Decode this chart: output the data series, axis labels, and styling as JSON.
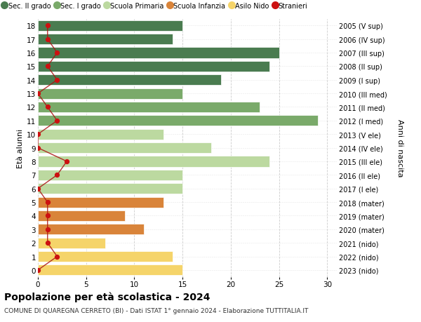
{
  "ages": [
    18,
    17,
    16,
    15,
    14,
    13,
    12,
    11,
    10,
    9,
    8,
    7,
    6,
    5,
    4,
    3,
    2,
    1,
    0
  ],
  "right_labels": [
    "2005 (V sup)",
    "2006 (IV sup)",
    "2007 (III sup)",
    "2008 (II sup)",
    "2009 (I sup)",
    "2010 (III med)",
    "2011 (II med)",
    "2012 (I med)",
    "2013 (V ele)",
    "2014 (IV ele)",
    "2015 (III ele)",
    "2016 (II ele)",
    "2017 (I ele)",
    "2018 (mater)",
    "2019 (mater)",
    "2020 (mater)",
    "2021 (nido)",
    "2022 (nido)",
    "2023 (nido)"
  ],
  "bar_values": [
    15,
    14,
    25,
    24,
    19,
    15,
    23,
    29,
    13,
    18,
    24,
    15,
    15,
    13,
    9,
    11,
    7,
    14,
    15
  ],
  "bar_colors": [
    "#4a7c50",
    "#4a7c50",
    "#4a7c50",
    "#4a7c50",
    "#4a7c50",
    "#7aaa6a",
    "#7aaa6a",
    "#7aaa6a",
    "#bcd9a0",
    "#bcd9a0",
    "#bcd9a0",
    "#bcd9a0",
    "#bcd9a0",
    "#d9843a",
    "#d9843a",
    "#d9843a",
    "#f5d46a",
    "#f5d46a",
    "#f5d46a"
  ],
  "stranieri_values": [
    1,
    1,
    2,
    1,
    2,
    0,
    1,
    2,
    0,
    0,
    3,
    2,
    0,
    1,
    1,
    1,
    1,
    2,
    0
  ],
  "legend_labels": [
    "Sec. II grado",
    "Sec. I grado",
    "Scuola Primaria",
    "Scuola Infanzia",
    "Asilo Nido",
    "Stranieri"
  ],
  "legend_colors": [
    "#4a7c50",
    "#7aaa6a",
    "#bcd9a0",
    "#d9843a",
    "#f5d46a",
    "#cc1111"
  ],
  "title": "Popolazione per età scolastica - 2024",
  "subtitle": "COMUNE DI QUAREGNA CERRETO (BI) - Dati ISTAT 1° gennaio 2024 - Elaborazione TUTTITALIA.IT",
  "ylabel_left": "Età alunni",
  "ylabel_right": "Anni di nascita",
  "xlim": [
    0,
    31
  ],
  "ylim": [
    -0.5,
    18.5
  ],
  "background_color": "#ffffff",
  "grid_color": "#cccccc"
}
